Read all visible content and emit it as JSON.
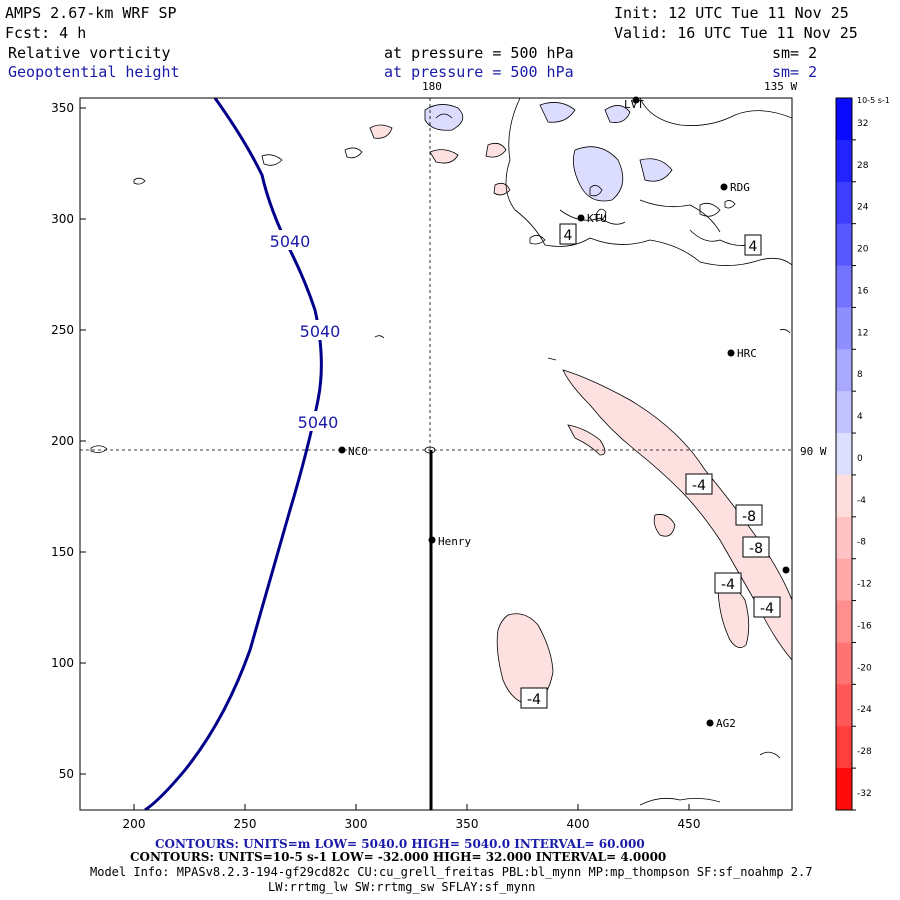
{
  "header": {
    "model": "AMPS 2.67-km WRF SP",
    "init": "Init: 12 UTC Tue 11 Nov 25",
    "fcst": "Fcst:    4 h",
    "valid": "Valid: 16 UTC Tue 11 Nov 25",
    "field1": "Relative vorticity",
    "field1_level": "at pressure =  500 hPa",
    "field1_sm": "sm= 2",
    "field2": "Geopotential height",
    "field2_level": "at pressure =  500 hPa",
    "field2_sm": "sm= 2"
  },
  "map": {
    "x_ticks": [
      "200",
      "250",
      "300",
      "350",
      "400",
      "450"
    ],
    "y_ticks": [
      "350",
      "300",
      "250",
      "200",
      "150",
      "100",
      "50"
    ],
    "meridian_label": "180",
    "meridian2_label": "135 W",
    "parallel_label": "90 W",
    "height_labels": [
      "5040",
      "5040",
      "5040"
    ],
    "vort_labels": [
      "4",
      "4",
      "-4",
      "-8",
      "-8",
      "-4",
      "-4",
      "-4"
    ],
    "stations": [
      "LVT",
      "RDG",
      "KTU",
      "HRC",
      "NCO",
      "Henry",
      "AG2"
    ]
  },
  "colorbar": {
    "unit_label": "10-5 s-1",
    "ticks": [
      "32",
      "28",
      "24",
      "20",
      "16",
      "12",
      "8",
      "4",
      "0",
      "-4",
      "-8",
      "-12",
      "-16",
      "-20",
      "-24",
      "-28",
      "-32"
    ],
    "colors": [
      "#0a0aff",
      "#2323ff",
      "#3e3eff",
      "#5858ff",
      "#7373ff",
      "#8e8eff",
      "#a8a8ff",
      "#c3c3ff",
      "#dedeff",
      "#ffdede",
      "#ffc3c3",
      "#ffa8a8",
      "#ff8e8e",
      "#ff7373",
      "#ff5858",
      "#ff3e3e",
      "#ff0a0a"
    ]
  },
  "colors": {
    "height_contour": "#00008b",
    "vort_fill_pos": "#dcdcff",
    "vort_fill_neg": "#fde0e0",
    "text_blue": "#1a1aa8"
  },
  "footer": {
    "contours1": "CONTOURS:  UNITS=m  LOW=  5040.0       HIGH=  5040.0       INTERVAL=   60.000",
    "contours2": "CONTOURS:  UNITS=10-5 s-1  LOW=  -32.000       HIGH=  32.000       INTERVAL=   4.0000",
    "model_info": "Model Info: MPASv8.2.3-194-gf29cd82c CU:cu_grell_freitas PBL:bl_mynn MP:mp_thompson SF:sf_noahmp 2.7",
    "model_info2": "LW:rrtmg_lw SW:rrtmg_sw SFLAY:sf_mynn"
  }
}
